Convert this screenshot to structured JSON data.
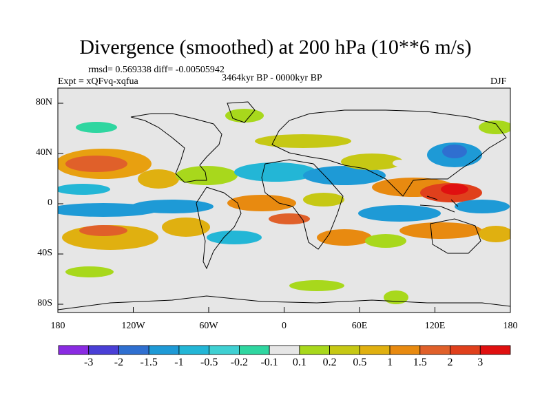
{
  "title": "Divergence (smoothed) at 200 hPa (10**6 m/s)",
  "stats": "rmsd= 0.569338 diff= -0.00505942",
  "period": "3464kyr BP - 0000kyr BP",
  "experiment": "Expt = xQFvq-xqfua",
  "season": "DJF",
  "lat_ticks": [
    "80N",
    "40N",
    "0",
    "40S",
    "80S"
  ],
  "lon_ticks": [
    "180",
    "120W",
    "60W",
    "0",
    "60E",
    "120E",
    "180"
  ],
  "colorbar": {
    "labels": [
      "-3",
      "-2",
      "-1.5",
      "-1",
      "-0.5",
      "-0.2",
      "-0.1",
      "0.1",
      "0.2",
      "0.5",
      "1",
      "1.5",
      "2",
      "3"
    ],
    "colors": [
      "#8a2be2",
      "#4a3fd6",
      "#2f6fd0",
      "#1e9ad6",
      "#23b6d6",
      "#3fd0d2",
      "#2fd6a0",
      "#e6e6e6",
      "#a8d81c",
      "#c6c814",
      "#e0b010",
      "#e88a10",
      "#e0602a",
      "#e0401c",
      "#e01010"
    ]
  },
  "colors": {
    "background_field": "#e6e6e6",
    "coast": "#000000"
  }
}
